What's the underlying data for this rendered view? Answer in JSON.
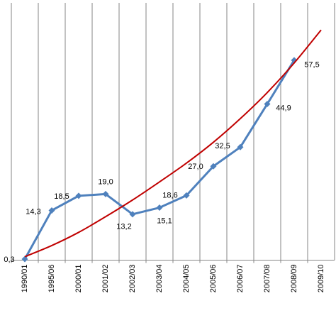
{
  "chart_data": {
    "type": "line",
    "categories": [
      "1990/01",
      "1995/06",
      "2000/01",
      "2001/02",
      "2002/03",
      "2003/04",
      "2004/05",
      "2005/06",
      "2006/07",
      "2007/08",
      "2008/09",
      "2009/10"
    ],
    "ylim": [
      0,
      74
    ],
    "grid": "x",
    "series": [
      {
        "color": "#4f81bd",
        "marker": "diamond",
        "values": [
          0.3,
          14.3,
          18.5,
          19.0,
          13.2,
          15.1,
          18.6,
          27.0,
          32.5,
          44.9,
          57.5,
          null
        ],
        "value_labels": [
          "0,3",
          "14,3",
          "18,5",
          "19,0",
          "13,2",
          "15,1",
          "18,6",
          "27,0",
          "32,5",
          "44,9",
          "57,5",
          null
        ]
      },
      {
        "color": "#c00000",
        "marker": "none",
        "smooth": true,
        "values": [
          1,
          4.2,
          8,
          12.5,
          17.3,
          22.5,
          27.9,
          33.9,
          40.7,
          48.2,
          56.7,
          66.2
        ]
      }
    ]
  }
}
